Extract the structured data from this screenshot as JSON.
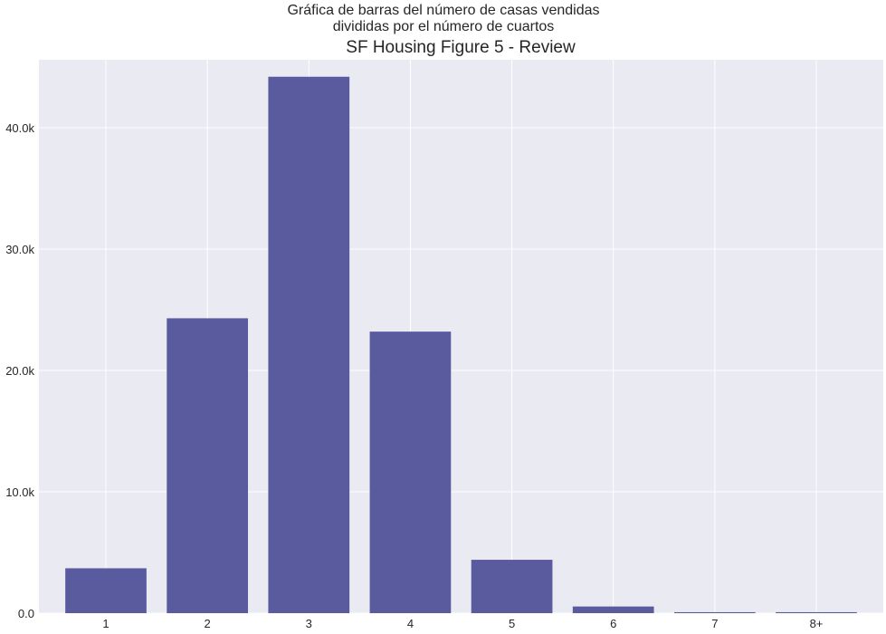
{
  "chart_data": {
    "type": "bar",
    "suptitle_lines": [
      "Gráfica de barras del número de casas vendidas",
      "divididas por el número de cuartos"
    ],
    "title": "SF Housing Figure 5 - Review",
    "categories": [
      "1",
      "2",
      "3",
      "4",
      "5",
      "6",
      "7",
      "8+"
    ],
    "values": [
      3700,
      24300,
      44200,
      23200,
      4400,
      550,
      80,
      80
    ],
    "xlabel": "",
    "ylabel": "",
    "ylim": [
      0,
      45600
    ],
    "yticks": [
      0,
      10000,
      20000,
      30000,
      40000
    ],
    "ytick_labels": [
      "0.0",
      "10.0k",
      "20.0k",
      "30.0k",
      "40.0k"
    ],
    "grid": true,
    "bar_color": "#5a5b9f",
    "background_color": "#eaeaf2",
    "grid_color": "#ffffff"
  }
}
